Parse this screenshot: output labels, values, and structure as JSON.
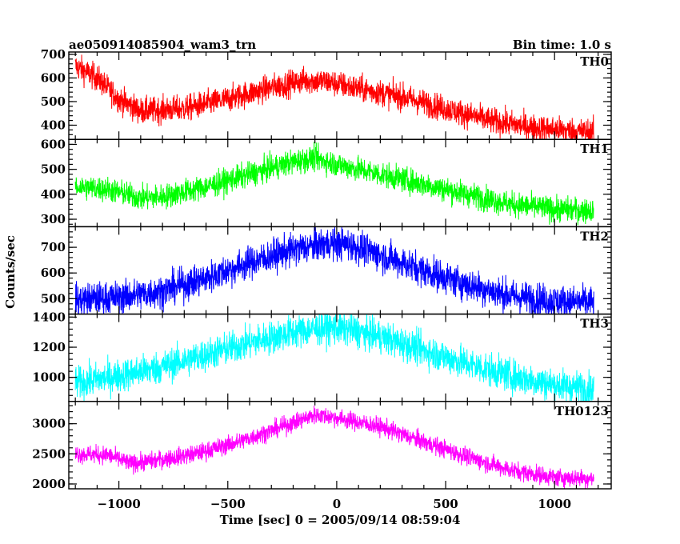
{
  "header": {
    "title": "ae050914085904_wam3_trn",
    "bin_time": "Bin time: 1.0 s"
  },
  "axes": {
    "xlabel": "Time [sec] 0 = 2005/09/14 08:59:04",
    "ylabel": "Counts/sec"
  },
  "chart_data": {
    "type": "line",
    "x_range": [
      -1230,
      1260
    ],
    "x_ticks": [
      -1000,
      -500,
      0,
      500,
      1000
    ],
    "x_tick_labels": [
      "−1000",
      "−500",
      "0",
      "500",
      "1000"
    ],
    "x_data_range": [
      -1200,
      1180
    ],
    "panels": [
      {
        "name": "TH0",
        "color": "#ff0000",
        "ylim": [
          340,
          710
        ],
        "y_ticks": [
          400,
          500,
          600,
          700
        ],
        "noise": 28,
        "trend": [
          [
            -1200,
            650
          ],
          [
            -1100,
            600
          ],
          [
            -1000,
            510
          ],
          [
            -900,
            460
          ],
          [
            -700,
            470
          ],
          [
            -500,
            510
          ],
          [
            -300,
            560
          ],
          [
            -150,
            590
          ],
          [
            -50,
            585
          ],
          [
            100,
            555
          ],
          [
            300,
            520
          ],
          [
            500,
            470
          ],
          [
            700,
            420
          ],
          [
            900,
            390
          ],
          [
            1100,
            375
          ],
          [
            1180,
            370
          ]
        ]
      },
      {
        "name": "TH1",
        "color": "#00ff00",
        "ylim": [
          270,
          620
        ],
        "y_ticks": [
          300,
          400,
          500,
          600
        ],
        "noise": 25,
        "trend": [
          [
            -1200,
            430
          ],
          [
            -1050,
            420
          ],
          [
            -900,
            385
          ],
          [
            -800,
            390
          ],
          [
            -600,
            430
          ],
          [
            -400,
            480
          ],
          [
            -200,
            530
          ],
          [
            -100,
            545
          ],
          [
            0,
            520
          ],
          [
            200,
            480
          ],
          [
            400,
            440
          ],
          [
            600,
            400
          ],
          [
            800,
            360
          ],
          [
            1000,
            340
          ],
          [
            1180,
            335
          ]
        ]
      },
      {
        "name": "TH2",
        "color": "#0000ff",
        "ylim": [
          440,
          780
        ],
        "y_ticks": [
          500,
          600,
          700
        ],
        "noise": 32,
        "trend": [
          [
            -1200,
            495
          ],
          [
            -1000,
            505
          ],
          [
            -800,
            530
          ],
          [
            -600,
            580
          ],
          [
            -400,
            640
          ],
          [
            -200,
            690
          ],
          [
            -50,
            715
          ],
          [
            50,
            712
          ],
          [
            200,
            670
          ],
          [
            400,
            610
          ],
          [
            600,
            555
          ],
          [
            800,
            510
          ],
          [
            1000,
            490
          ],
          [
            1180,
            485
          ]
        ]
      },
      {
        "name": "TH3",
        "color": "#00ffff",
        "ylim": [
          840,
          1420
        ],
        "y_ticks": [
          1000,
          1200,
          1400
        ],
        "noise": 55,
        "trend": [
          [
            -1200,
            960
          ],
          [
            -1000,
            1010
          ],
          [
            -800,
            1070
          ],
          [
            -600,
            1150
          ],
          [
            -400,
            1230
          ],
          [
            -200,
            1300
          ],
          [
            -50,
            1330
          ],
          [
            50,
            1320
          ],
          [
            200,
            1270
          ],
          [
            400,
            1180
          ],
          [
            600,
            1090
          ],
          [
            800,
            1010
          ],
          [
            1000,
            950
          ],
          [
            1180,
            920
          ]
        ]
      },
      {
        "name": "TH0123",
        "color": "#ff00ff",
        "ylim": [
          1920,
          3370
        ],
        "y_ticks": [
          2000,
          2500,
          3000
        ],
        "noise": 75,
        "trend": [
          [
            -1200,
            2500
          ],
          [
            -1050,
            2480
          ],
          [
            -950,
            2340
          ],
          [
            -850,
            2380
          ],
          [
            -650,
            2500
          ],
          [
            -450,
            2700
          ],
          [
            -250,
            2950
          ],
          [
            -100,
            3150
          ],
          [
            0,
            3100
          ],
          [
            200,
            2950
          ],
          [
            400,
            2700
          ],
          [
            600,
            2450
          ],
          [
            800,
            2230
          ],
          [
            1000,
            2110
          ],
          [
            1180,
            2090
          ]
        ]
      }
    ]
  }
}
